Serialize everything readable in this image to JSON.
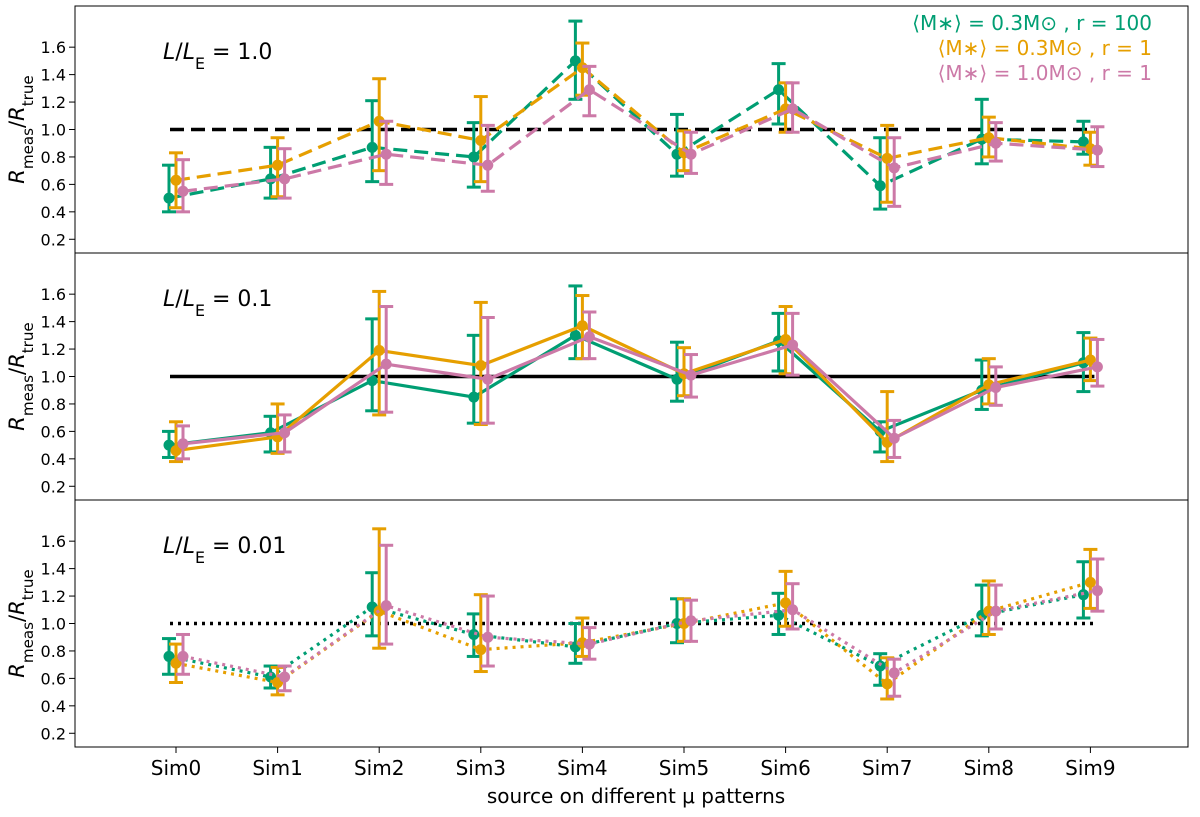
{
  "chart_data": {
    "type": "line",
    "categories": [
      "Sim0",
      "Sim1",
      "Sim2",
      "Sim3",
      "Sim4",
      "Sim5",
      "Sim6",
      "Sim7",
      "Sim8",
      "Sim9"
    ],
    "xlabel": "source on different μ patterns",
    "ylabel": "R_meas/R_true",
    "ylim": [
      0.1,
      1.9
    ],
    "yticks": [
      0.2,
      0.4,
      0.6,
      0.8,
      1.0,
      1.2,
      1.4,
      1.6
    ],
    "legend": {
      "placement": "top-right",
      "entries": [
        {
          "text": "⟨M∗⟩ = 0.3M⊙ , r = 100",
          "color": "#009E73"
        },
        {
          "text": "⟨M∗⟩ = 0.3M⊙ , r = 1",
          "color": "#E69F00"
        },
        {
          "text": "⟨M∗⟩ = 1.0M⊙ , r = 1",
          "color": "#CC79A7"
        }
      ]
    },
    "panels": [
      {
        "label": "L/L_E = 1.0",
        "linestyle": "dashed",
        "reference": 1.0,
        "series": [
          {
            "name": "⟨M∗⟩ = 0.3M⊙ , r = 100",
            "color": "#009E73",
            "values": [
              0.5,
              0.64,
              0.87,
              0.8,
              1.5,
              0.82,
              1.29,
              0.59,
              0.93,
              0.91
            ],
            "err_low": [
              0.4,
              0.5,
              0.62,
              0.58,
              1.22,
              0.66,
              1.04,
              0.42,
              0.75,
              0.82
            ],
            "err_high": [
              0.74,
              0.87,
              1.21,
              1.05,
              1.79,
              1.11,
              1.48,
              0.94,
              1.22,
              1.06
            ]
          },
          {
            "name": "⟨M∗⟩ = 0.3M⊙ , r = 1",
            "color": "#E69F00",
            "values": [
              0.63,
              0.74,
              1.06,
              0.92,
              1.45,
              0.83,
              1.15,
              0.79,
              0.94,
              0.86
            ],
            "err_low": [
              0.43,
              0.51,
              0.7,
              0.62,
              1.25,
              0.7,
              0.98,
              0.47,
              0.8,
              0.74
            ],
            "err_high": [
              0.83,
              0.94,
              1.37,
              1.24,
              1.63,
              0.99,
              1.34,
              1.03,
              1.09,
              0.98
            ]
          },
          {
            "name": "⟨M∗⟩ = 1.0M⊙ , r = 1",
            "color": "#CC79A7",
            "values": [
              0.55,
              0.64,
              0.82,
              0.74,
              1.29,
              0.82,
              1.15,
              0.72,
              0.9,
              0.85
            ],
            "err_low": [
              0.4,
              0.5,
              0.6,
              0.55,
              1.1,
              0.68,
              0.98,
              0.44,
              0.77,
              0.73
            ],
            "err_high": [
              0.78,
              0.86,
              1.06,
              1.03,
              1.46,
              0.98,
              1.34,
              0.94,
              1.05,
              1.02
            ]
          }
        ]
      },
      {
        "label": "L/L_E = 0.1",
        "linestyle": "solid",
        "reference": 1.0,
        "series": [
          {
            "name": "⟨M∗⟩ = 0.3M⊙ , r = 100",
            "color": "#009E73",
            "values": [
              0.5,
              0.59,
              0.97,
              0.85,
              1.3,
              0.98,
              1.26,
              0.6,
              0.9,
              1.1
            ],
            "err_low": [
              0.41,
              0.45,
              0.75,
              0.66,
              1.13,
              0.82,
              1.04,
              0.45,
              0.76,
              0.89
            ],
            "err_high": [
              0.6,
              0.71,
              1.42,
              1.3,
              1.66,
              1.25,
              1.46,
              0.67,
              1.12,
              1.32
            ]
          },
          {
            "name": "⟨M∗⟩ = 0.3M⊙ , r = 1",
            "color": "#E69F00",
            "values": [
              0.46,
              0.56,
              1.19,
              1.08,
              1.37,
              1.02,
              1.27,
              0.52,
              0.94,
              1.12
            ],
            "err_low": [
              0.38,
              0.44,
              0.72,
              0.65,
              1.13,
              0.86,
              1.02,
              0.38,
              0.8,
              0.97
            ],
            "err_high": [
              0.67,
              0.8,
              1.62,
              1.54,
              1.59,
              1.21,
              1.51,
              0.89,
              1.13,
              1.28
            ]
          },
          {
            "name": "⟨M∗⟩ = 1.0M⊙ , r = 1",
            "color": "#CC79A7",
            "values": [
              0.51,
              0.59,
              1.09,
              0.98,
              1.29,
              1.01,
              1.23,
              0.55,
              0.92,
              1.07
            ],
            "err_low": [
              0.4,
              0.45,
              0.74,
              0.66,
              1.13,
              0.85,
              1.01,
              0.41,
              0.79,
              0.93
            ],
            "err_high": [
              0.64,
              0.72,
              1.51,
              1.43,
              1.47,
              1.16,
              1.46,
              0.68,
              1.07,
              1.27
            ]
          }
        ]
      },
      {
        "label": "L/L_E = 0.01",
        "linestyle": "dotted",
        "reference": 1.0,
        "series": [
          {
            "name": "⟨M∗⟩ = 0.3M⊙ , r = 100",
            "color": "#009E73",
            "values": [
              0.76,
              0.61,
              1.12,
              0.92,
              0.83,
              1.0,
              1.06,
              0.69,
              1.06,
              1.21
            ],
            "err_low": [
              0.63,
              0.53,
              0.91,
              0.76,
              0.71,
              0.86,
              0.92,
              0.55,
              0.91,
              1.04
            ],
            "err_high": [
              0.89,
              0.69,
              1.37,
              1.07,
              1.0,
              1.18,
              1.22,
              0.78,
              1.28,
              1.45
            ]
          },
          {
            "name": "⟨M∗⟩ = 0.3M⊙ , r = 1",
            "color": "#E69F00",
            "values": [
              0.71,
              0.57,
              1.09,
              0.81,
              0.86,
              1.0,
              1.15,
              0.56,
              1.09,
              1.3
            ],
            "err_low": [
              0.57,
              0.48,
              0.82,
              0.65,
              0.76,
              0.87,
              0.98,
              0.45,
              0.92,
              1.11
            ],
            "err_high": [
              0.85,
              0.68,
              1.69,
              1.21,
              1.04,
              1.18,
              1.38,
              0.75,
              1.31,
              1.54
            ]
          },
          {
            "name": "⟨M∗⟩ = 1.0M⊙ , r = 1",
            "color": "#CC79A7",
            "values": [
              0.76,
              0.61,
              1.13,
              0.9,
              0.85,
              1.02,
              1.1,
              0.64,
              1.09,
              1.24
            ],
            "err_low": [
              0.63,
              0.51,
              0.85,
              0.69,
              0.74,
              0.87,
              0.96,
              0.47,
              0.96,
              1.09
            ],
            "err_high": [
              0.92,
              0.69,
              1.57,
              1.2,
              0.97,
              1.17,
              1.29,
              0.74,
              1.28,
              1.47
            ]
          }
        ]
      }
    ]
  }
}
